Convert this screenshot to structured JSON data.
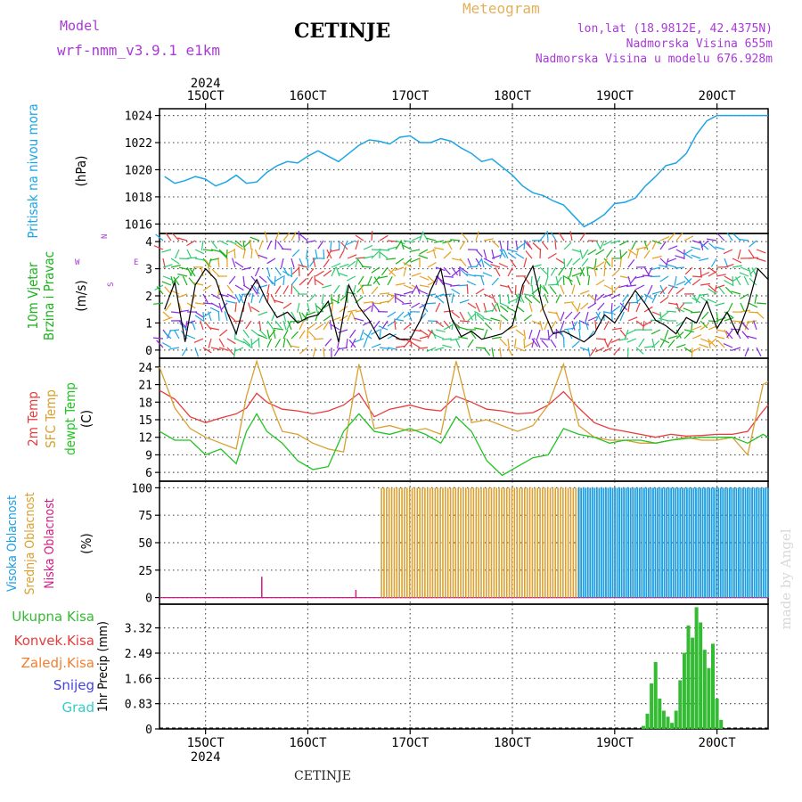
{
  "header": {
    "model_label": "Model",
    "model_name": "wrf-nmm_v3.9.1 e1km",
    "station": "CETINJE",
    "meteogram": "Meteogram",
    "lonlat": "lon,lat (18.9812E, 42.4375N)",
    "elevation": "Nadmorska Visina 655m",
    "model_elevation": "Nadmorska Visina u modelu 676.928m"
  },
  "footer": {
    "station": "CETINJE",
    "signature": "made by Angel"
  },
  "colors": {
    "pressure": "#1ea5e6",
    "wind": "#1ab21a",
    "temp2m": "#e83c3c",
    "sfc": "#d9a030",
    "dew": "#22c322",
    "high_cloud": "#1b9de0",
    "mid_cloud": "#d9a030",
    "low_cloud": "#d21c84",
    "precip": "#33bb33",
    "grad": "#33cccc",
    "snow": "#4444dd"
  },
  "chart_data": {
    "type": "meteogram",
    "time_axis": {
      "year": "2024",
      "ticks": [
        "15OCT",
        "16OCT",
        "17OCT",
        "18OCT",
        "19OCT",
        "20OCT"
      ],
      "start_day": 14.55,
      "end_day": 20.5
    },
    "panels": [
      {
        "id": "pressure",
        "type": "line",
        "ylabel": [
          "Pritisak na nivou mora",
          "(hPa)"
        ],
        "yticks": [
          1016,
          1018,
          1020,
          1022,
          1024
        ],
        "ylim": [
          1015.3,
          1024.5
        ],
        "series": [
          {
            "x": [
              14.6,
              14.7,
              14.8,
              14.9,
              15.0,
              15.1,
              15.2,
              15.3,
              15.4,
              15.5,
              15.6,
              15.7,
              15.8,
              15.9,
              16.0,
              16.1,
              16.2,
              16.3,
              16.4,
              16.5,
              16.6,
              16.7,
              16.8,
              16.9,
              17.0,
              17.1,
              17.2,
              17.3,
              17.4,
              17.5,
              17.6,
              17.7,
              17.8,
              17.9,
              18.0,
              18.1,
              18.2,
              18.3,
              18.4,
              18.5,
              18.6,
              18.7,
              18.8,
              18.9,
              19.0,
              19.1,
              19.2,
              19.3,
              19.4,
              19.5,
              19.6,
              19.7,
              19.8,
              19.9,
              20.0,
              20.1,
              20.2,
              20.3,
              20.4,
              20.5
            ],
            "y": [
              1019.5,
              1019.0,
              1019.2,
              1019.5,
              1019.3,
              1018.8,
              1019.1,
              1019.6,
              1019.0,
              1019.1,
              1019.8,
              1020.3,
              1020.6,
              1020.5,
              1021.0,
              1021.4,
              1021.0,
              1020.6,
              1021.2,
              1021.8,
              1022.2,
              1022.1,
              1021.9,
              1022.4,
              1022.5,
              1022.0,
              1022.0,
              1022.3,
              1022.1,
              1021.6,
              1021.2,
              1020.6,
              1020.8,
              1020.2,
              1019.6,
              1018.8,
              1018.3,
              1018.1,
              1017.7,
              1017.4,
              1016.6,
              1015.8,
              1016.2,
              1016.7,
              1017.5,
              1017.6,
              1017.9,
              1018.8,
              1019.5,
              1020.3,
              1020.5,
              1021.2,
              1022.6,
              1023.6,
              1024.0,
              1024.0,
              1024.0,
              1024.0,
              1024.0,
              1024.0
            ]
          }
        ]
      },
      {
        "id": "wind",
        "type": "barbs+line",
        "ylabel": [
          "10m Vjetar",
          "Brzina i Pravac",
          "(m/s)"
        ],
        "compass": {
          "n": "N",
          "w": "W",
          "e": "E",
          "s": "S"
        },
        "yticks": [
          0,
          1,
          2,
          3,
          4
        ],
        "ylim": [
          -0.3,
          4.3
        ],
        "series": [
          {
            "x": [
              14.6,
              14.7,
              14.8,
              14.9,
              15.0,
              15.1,
              15.2,
              15.3,
              15.4,
              15.5,
              15.6,
              15.7,
              15.8,
              15.9,
              16.0,
              16.1,
              16.2,
              16.3,
              16.4,
              16.5,
              16.6,
              16.7,
              16.8,
              16.9,
              17.0,
              17.1,
              17.2,
              17.3,
              17.4,
              17.5,
              17.6,
              17.7,
              17.8,
              17.9,
              18.0,
              18.1,
              18.2,
              18.3,
              18.4,
              18.5,
              18.6,
              18.7,
              18.8,
              18.9,
              19.0,
              19.1,
              19.2,
              19.3,
              19.4,
              19.5,
              19.6,
              19.7,
              19.8,
              19.9,
              20.0,
              20.1,
              20.2,
              20.3,
              20.4,
              20.5
            ],
            "y": [
              1.5,
              2.5,
              0.3,
              2.4,
              3.0,
              2.6,
              1.5,
              0.6,
              2.0,
              2.6,
              1.8,
              1.2,
              1.4,
              1.0,
              1.2,
              1.3,
              1.8,
              0.3,
              2.4,
              1.6,
              1.1,
              0.4,
              0.6,
              0.4,
              0.4,
              1.1,
              2.2,
              3.0,
              1.2,
              0.5,
              0.7,
              0.4,
              0.5,
              0.6,
              0.9,
              2.4,
              3.1,
              1.5,
              0.6,
              0.7,
              0.5,
              0.3,
              0.6,
              1.3,
              1.0,
              1.6,
              2.2,
              1.7,
              1.1,
              0.9,
              0.6,
              1.2,
              1.0,
              1.8,
              0.8,
              1.4,
              0.6,
              1.6,
              3.0,
              2.6
            ]
          }
        ]
      },
      {
        "id": "temperature",
        "type": "line",
        "ylabel": [
          "2m Temp",
          "SFC Temp",
          "dewpt Temp",
          "(C)"
        ],
        "yticks": [
          6,
          9,
          12,
          15,
          18,
          21,
          24
        ],
        "ylim": [
          4.5,
          25.5
        ],
        "series": [
          {
            "name": "2m Temp",
            "x": [
              14.55,
              14.7,
              14.85,
              15.0,
              15.15,
              15.3,
              15.4,
              15.5,
              15.6,
              15.75,
              15.9,
              16.05,
              16.2,
              16.35,
              16.5,
              16.65,
              16.8,
              17.0,
              17.15,
              17.3,
              17.45,
              17.6,
              17.75,
              17.9,
              18.05,
              18.2,
              18.35,
              18.5,
              18.65,
              18.8,
              18.95,
              19.1,
              19.25,
              19.4,
              19.55,
              19.7,
              19.85,
              20.0,
              20.15,
              20.3,
              20.45,
              20.5
            ],
            "y": [
              20,
              18.5,
              15.5,
              14.5,
              15.3,
              16,
              17,
              19.5,
              18,
              16.8,
              16.5,
              16,
              16.5,
              17.5,
              19.5,
              15.5,
              16.8,
              17.5,
              16.8,
              16.5,
              19,
              18,
              16.8,
              16.5,
              16,
              16.2,
              17.5,
              19.8,
              17,
              14.5,
              13.5,
              13,
              12.5,
              12,
              12.5,
              12.2,
              12.3,
              12.5,
              12.5,
              13,
              16.5,
              17.5
            ]
          },
          {
            "name": "SFC Temp",
            "x": [
              14.55,
              14.7,
              14.85,
              15.0,
              15.15,
              15.3,
              15.4,
              15.5,
              15.6,
              15.75,
              15.9,
              16.05,
              16.2,
              16.35,
              16.5,
              16.65,
              16.8,
              17.0,
              17.15,
              17.3,
              17.45,
              17.6,
              17.75,
              17.9,
              18.05,
              18.2,
              18.35,
              18.5,
              18.65,
              18.8,
              18.95,
              19.1,
              19.25,
              19.4,
              19.55,
              19.7,
              19.85,
              20.0,
              20.15,
              20.3,
              20.45,
              20.5
            ],
            "y": [
              24,
              17,
              13.5,
              12,
              11,
              10,
              19,
              25,
              19.5,
              13,
              12.5,
              11,
              10,
              9.5,
              24.5,
              13.5,
              14,
              13,
              13.5,
              12.5,
              25,
              14.5,
              15,
              14,
              13,
              14,
              17.5,
              24.5,
              14,
              12,
              11.5,
              11.5,
              11,
              11,
              11.5,
              12,
              11.5,
              11.5,
              12,
              9,
              21,
              21.5
            ]
          },
          {
            "name": "dewpt Temp",
            "x": [
              14.55,
              14.7,
              14.85,
              15.0,
              15.15,
              15.3,
              15.4,
              15.5,
              15.6,
              15.75,
              15.9,
              16.05,
              16.2,
              16.35,
              16.5,
              16.65,
              16.8,
              17.0,
              17.15,
              17.3,
              17.45,
              17.6,
              17.75,
              17.9,
              18.05,
              18.2,
              18.35,
              18.5,
              18.65,
              18.8,
              18.95,
              19.1,
              19.25,
              19.4,
              19.55,
              19.7,
              19.85,
              20.0,
              20.15,
              20.3,
              20.45,
              20.5
            ],
            "y": [
              13,
              11.5,
              11.5,
              9,
              10,
              7.5,
              13,
              16,
              13,
              11,
              8,
              6.5,
              7,
              13,
              16,
              13,
              12.5,
              13.5,
              12.5,
              11,
              15.5,
              13,
              8,
              5.5,
              7,
              8.5,
              9,
              13.5,
              12.5,
              12,
              11,
              11.5,
              11.5,
              11,
              11.5,
              11.8,
              12,
              12,
              12,
              11,
              12.5,
              12
            ]
          }
        ]
      },
      {
        "id": "cloud",
        "type": "bar",
        "ylabel": [
          "Visoka Oblacnost",
          "Srednja Oblacnost",
          "Niska Oblacnost",
          "(%)"
        ],
        "yticks": [
          0,
          25,
          50,
          75,
          100
        ],
        "ylim": [
          -6,
          106
        ],
        "series": [
          {
            "name": "Visoka Oblacnost",
            "x_start": 18.65,
            "x_end": 20.5,
            "value": 100
          },
          {
            "name": "Srednja Oblacnost",
            "x_start": 16.72,
            "x_end": 18.65,
            "value": 100
          },
          {
            "name": "Niska Oblacnost",
            "spikes": [
              {
                "x": 15.55,
                "value": 19
              },
              {
                "x": 16.47,
                "value": 7
              }
            ]
          }
        ]
      },
      {
        "id": "precip",
        "type": "bar",
        "ylabel": [
          "1hr Precip (mm)"
        ],
        "legend": [
          "Ukupna Kisa",
          "Konvek.Kisa",
          "Zaledj.Kisa",
          "Snijeg",
          "Grad"
        ],
        "yticks": [
          0,
          0.83,
          1.66,
          2.49,
          3.32
        ],
        "ylim": [
          0,
          4.1
        ],
        "series": [
          {
            "name": "Ukupna Kisa",
            "x": [
              19.28,
              19.32,
              19.36,
              19.4,
              19.44,
              19.48,
              19.52,
              19.56,
              19.6,
              19.64,
              19.68,
              19.72,
              19.76,
              19.8,
              19.84,
              19.88,
              19.92,
              19.96,
              20.0,
              20.04
            ],
            "y": [
              0.1,
              0.5,
              1.5,
              2.2,
              1.0,
              0.6,
              0.4,
              0.2,
              0.6,
              1.6,
              2.5,
              3.4,
              3.0,
              4.0,
              3.5,
              2.6,
              2.0,
              2.8,
              1.0,
              0.3
            ]
          }
        ]
      }
    ]
  }
}
